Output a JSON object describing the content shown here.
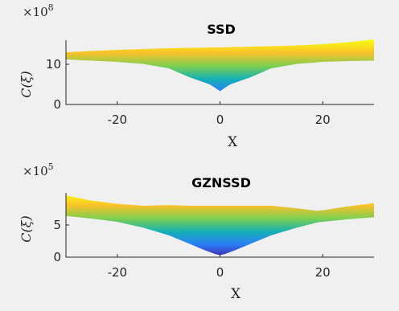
{
  "chart_data": [
    {
      "type": "area",
      "title": "SSD",
      "xlabel": "X",
      "ylabel": "C(ξ)",
      "exponent_base": "×10",
      "exponent_power": "8",
      "xlim": [
        -30,
        30
      ],
      "ylim": [
        0,
        16
      ],
      "xticks": [
        -20,
        0,
        20
      ],
      "yticks": [
        0,
        10
      ],
      "colormap": [
        "#3e26a8",
        "#2c7ef7",
        "#15b1b4",
        "#7ccf50",
        "#f9c12b",
        "#f9fb0e"
      ],
      "x": [
        -30,
        -25,
        -20,
        -15,
        -10,
        -6,
        -4,
        -2,
        -1,
        0,
        1,
        2,
        4,
        6,
        10,
        15,
        20,
        25,
        30
      ],
      "upper": [
        13.0,
        13.3,
        13.6,
        13.8,
        14.0,
        14.1,
        14.1,
        14.2,
        14.2,
        14.2,
        14.2,
        14.3,
        14.3,
        14.4,
        14.5,
        14.7,
        15.0,
        15.5,
        16.2
      ],
      "lower": [
        11.2,
        10.9,
        10.6,
        10.1,
        9.0,
        6.8,
        5.9,
        5.0,
        4.2,
        3.3,
        4.2,
        5.0,
        5.9,
        6.8,
        9.0,
        10.1,
        10.6,
        10.8,
        10.9
      ]
    },
    {
      "type": "area",
      "title": "GZNSSD",
      "xlabel": "X",
      "ylabel": "C(ξ)",
      "exponent_base": "×10",
      "exponent_power": "5",
      "xlim": [
        -30,
        30
      ],
      "ylim": [
        0,
        10
      ],
      "xticks": [
        -20,
        0,
        20
      ],
      "yticks": [
        0,
        5
      ],
      "colormap": [
        "#3e26a8",
        "#2c7ef7",
        "#15b1b4",
        "#7ccf50",
        "#f9c12b",
        "#f9fb0e"
      ],
      "x": [
        -30,
        -25,
        -20,
        -15,
        -10,
        -6,
        -3,
        -1,
        0,
        1,
        3,
        6,
        10,
        15,
        19,
        20,
        25,
        30
      ],
      "upper": [
        9.6,
        8.8,
        8.3,
        8.0,
        8.1,
        8.0,
        8.0,
        8.0,
        8.0,
        8.0,
        8.0,
        8.0,
        8.0,
        7.6,
        7.2,
        7.3,
        7.9,
        8.4
      ],
      "lower": [
        6.4,
        6.0,
        5.5,
        4.6,
        3.4,
        2.1,
        1.1,
        0.5,
        0.3,
        0.5,
        1.1,
        2.1,
        3.4,
        4.6,
        5.4,
        5.5,
        5.9,
        6.2
      ]
    }
  ]
}
